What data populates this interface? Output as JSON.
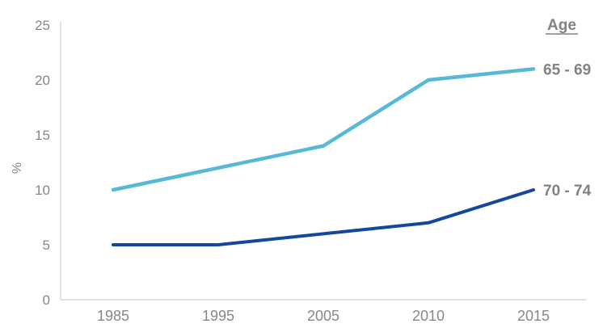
{
  "chart_data": {
    "type": "line",
    "title": "",
    "categories": [
      "1985",
      "1995",
      "2005",
      "2010",
      "2015"
    ],
    "series": [
      {
        "name": "65 - 69",
        "values": [
          10,
          12,
          14,
          20,
          21
        ],
        "color": "#57B8D8",
        "stroke_width": 4.5
      },
      {
        "name": "70 - 74",
        "values": [
          5,
          5,
          6,
          7,
          10
        ],
        "color": "#14489C",
        "stroke_width": 4
      }
    ],
    "xlabel": "",
    "ylabel": "%",
    "ylim": [
      0,
      25
    ],
    "yticks": [
      0,
      5,
      10,
      15,
      20,
      25
    ],
    "legend_title": "Age",
    "legend_position": "right of line ends",
    "grid": false
  },
  "styles": {
    "axis_color": "#D9D9D9",
    "tick_label_color": "#85888B",
    "legend_label_color": "#808285",
    "background": "#FFFFFF"
  }
}
